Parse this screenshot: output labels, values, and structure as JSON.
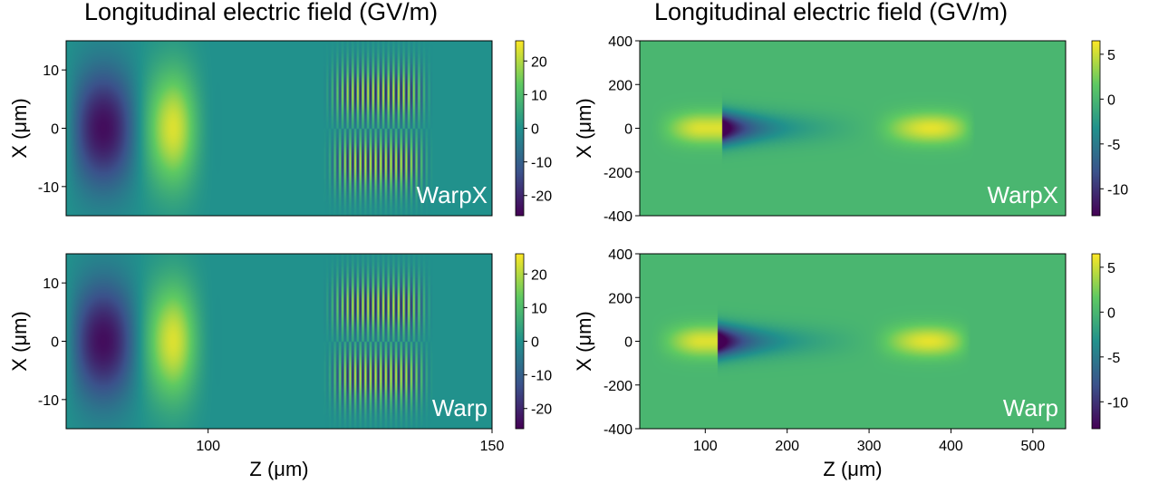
{
  "columns": [
    {
      "title": "Longitudinal electric field (GV/m)"
    },
    {
      "title": "Longitudinal electric field (GV/m)"
    }
  ],
  "colors": {
    "colormap": [
      "#440154",
      "#3b528b",
      "#21918c",
      "#5ec962",
      "#fde725"
    ],
    "tick_color": "#000000"
  },
  "chart_data": [
    {
      "type": "heatmap",
      "label": "WarpX",
      "xlabel": "",
      "ylabel": "X (μm)",
      "xlim": [
        75,
        150
      ],
      "ylim": [
        -15,
        15
      ],
      "x_ticks": [],
      "y_ticks": [
        {
          "value": 10,
          "label": "10"
        },
        {
          "value": 0,
          "label": "0"
        },
        {
          "value": -10,
          "label": "-10"
        }
      ],
      "colorbar": {
        "range": [
          -26,
          26
        ],
        "ticks": [
          {
            "value": 20,
            "label": "20"
          },
          {
            "value": 10,
            "label": "10"
          },
          {
            "value": 0,
            "label": "0"
          },
          {
            "value": -10,
            "label": "-10"
          },
          {
            "value": -20,
            "label": "-20"
          }
        ]
      },
      "features": {
        "wake_ends": 97,
        "wake_period": 26,
        "wake_amp": 24,
        "wake_width": 10,
        "laser_center": 130,
        "laser_half": 8,
        "laser_amp": 24,
        "laser_width": 5
      }
    },
    {
      "type": "heatmap",
      "label": "WarpX",
      "xlabel": "",
      "ylabel": "X (μm)",
      "xlim": [
        20,
        540
      ],
      "ylim": [
        -400,
        400
      ],
      "x_ticks": [],
      "y_ticks": [
        {
          "value": 400,
          "label": "400"
        },
        {
          "value": 200,
          "label": "200"
        },
        {
          "value": 0,
          "label": "0"
        },
        {
          "value": -200,
          "label": "-200"
        },
        {
          "value": -400,
          "label": "-400"
        }
      ],
      "colorbar": {
        "range": [
          -13,
          6.5
        ],
        "ticks": [
          {
            "value": 5,
            "label": "5"
          },
          {
            "value": 0,
            "label": "0"
          },
          {
            "value": -5,
            "label": "-5"
          },
          {
            "value": -10,
            "label": "-10"
          }
        ]
      },
      "features": {
        "spike_z": 120,
        "spike_min": -13,
        "bubble_end": 300,
        "beam_start": 30,
        "beam_end": 95,
        "beam_amp": 5.5,
        "front_start": 300,
        "front_end": 430,
        "front_amp": 6,
        "width": 70
      }
    },
    {
      "type": "heatmap",
      "label": "Warp",
      "xlabel": "Z (μm)",
      "ylabel": "X (μm)",
      "xlim": [
        75,
        150
      ],
      "ylim": [
        -15,
        15
      ],
      "x_ticks": [
        {
          "value": 100,
          "label": "100"
        },
        {
          "value": 150,
          "label": "150"
        }
      ],
      "y_ticks": [
        {
          "value": 10,
          "label": "10"
        },
        {
          "value": 0,
          "label": "0"
        },
        {
          "value": -10,
          "label": "-10"
        }
      ],
      "colorbar": {
        "range": [
          -26,
          26
        ],
        "ticks": [
          {
            "value": 20,
            "label": "20"
          },
          {
            "value": 10,
            "label": "10"
          },
          {
            "value": 0,
            "label": "0"
          },
          {
            "value": -10,
            "label": "-10"
          },
          {
            "value": -20,
            "label": "-20"
          }
        ]
      },
      "features": {
        "wake_ends": 97,
        "wake_period": 26,
        "wake_amp": 24,
        "wake_width": 10,
        "laser_center": 130,
        "laser_half": 8,
        "laser_amp": 24,
        "laser_width": 5
      }
    },
    {
      "type": "heatmap",
      "label": "Warp",
      "xlabel": "Z (μm)",
      "ylabel": "X (μm)",
      "xlim": [
        20,
        540
      ],
      "ylim": [
        -400,
        400
      ],
      "x_ticks": [
        {
          "value": 100,
          "label": "100"
        },
        {
          "value": 200,
          "label": "200"
        },
        {
          "value": 300,
          "label": "300"
        },
        {
          "value": 400,
          "label": "400"
        },
        {
          "value": 500,
          "label": "500"
        }
      ],
      "y_ticks": [
        {
          "value": 400,
          "label": "400"
        },
        {
          "value": 200,
          "label": "200"
        },
        {
          "value": 0,
          "label": "0"
        },
        {
          "value": -200,
          "label": "-200"
        },
        {
          "value": -400,
          "label": "-400"
        }
      ],
      "colorbar": {
        "range": [
          -13,
          6.5
        ],
        "ticks": [
          {
            "value": 5,
            "label": "5"
          },
          {
            "value": 0,
            "label": "0"
          },
          {
            "value": -5,
            "label": "-5"
          },
          {
            "value": -10,
            "label": "-10"
          }
        ]
      },
      "features": {
        "spike_z": 115,
        "spike_min": -13,
        "bubble_end": 300,
        "beam_start": 30,
        "beam_end": 95,
        "beam_amp": 5.5,
        "front_start": 300,
        "front_end": 425,
        "front_amp": 6,
        "width": 70
      }
    }
  ]
}
